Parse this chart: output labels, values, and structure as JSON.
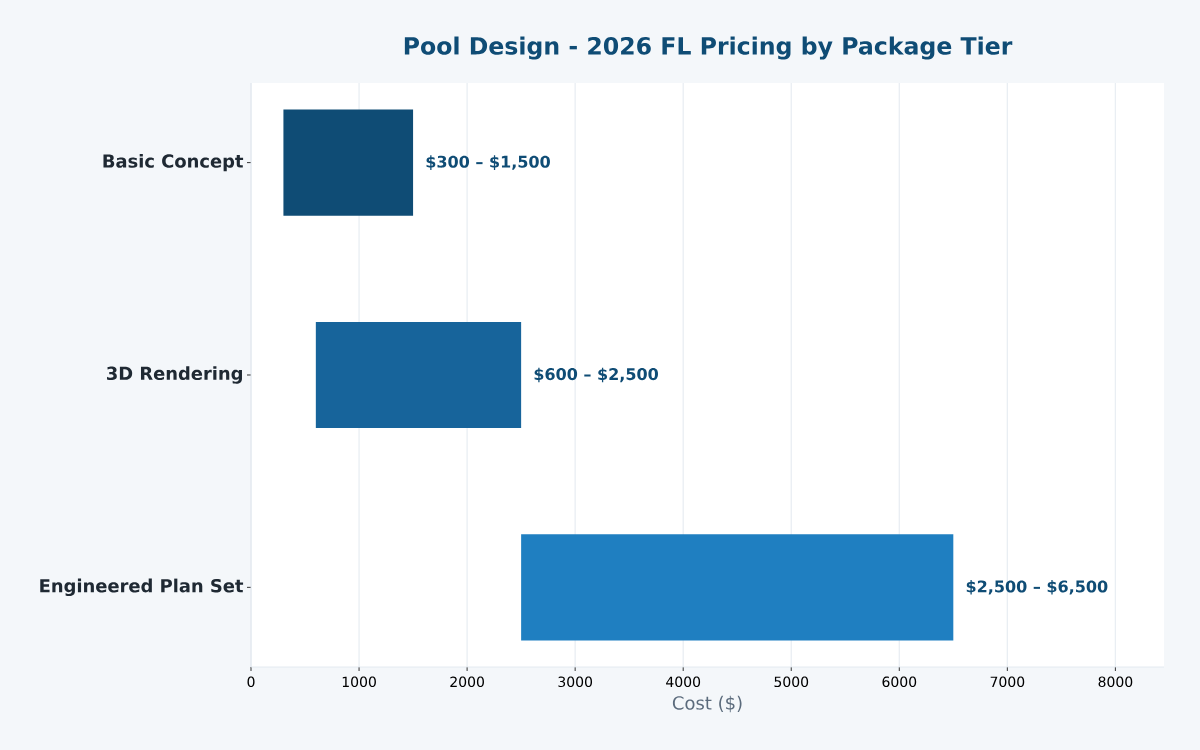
{
  "chart_data": {
    "type": "bar",
    "orientation": "horizontal",
    "title": "Pool Design - 2026 FL Pricing by Package Tier",
    "xlabel": "Cost ($)",
    "categories": [
      "Basic Concept",
      "3D Rendering",
      "Engineered Plan Set"
    ],
    "base": [
      300,
      600,
      2500
    ],
    "values": [
      1200,
      1900,
      4000
    ],
    "colors": [
      "#0f4c75",
      "#17649b",
      "#1f7fc1"
    ],
    "annotations": [
      {
        "text": "$300 – $1,500",
        "x": 1500,
        "y": "Basic Concept"
      },
      {
        "text": "$600 – $2,500",
        "x": 2500,
        "y": "3D Rendering"
      },
      {
        "text": "$2,500 – $6,500",
        "x": 6500,
        "y": "Engineered Plan Set"
      }
    ],
    "xlim": [
      0,
      8450
    ],
    "xticks": [
      0,
      1000,
      2000,
      3000,
      4000,
      5000,
      6000,
      7000,
      8000
    ],
    "grid": "x"
  }
}
